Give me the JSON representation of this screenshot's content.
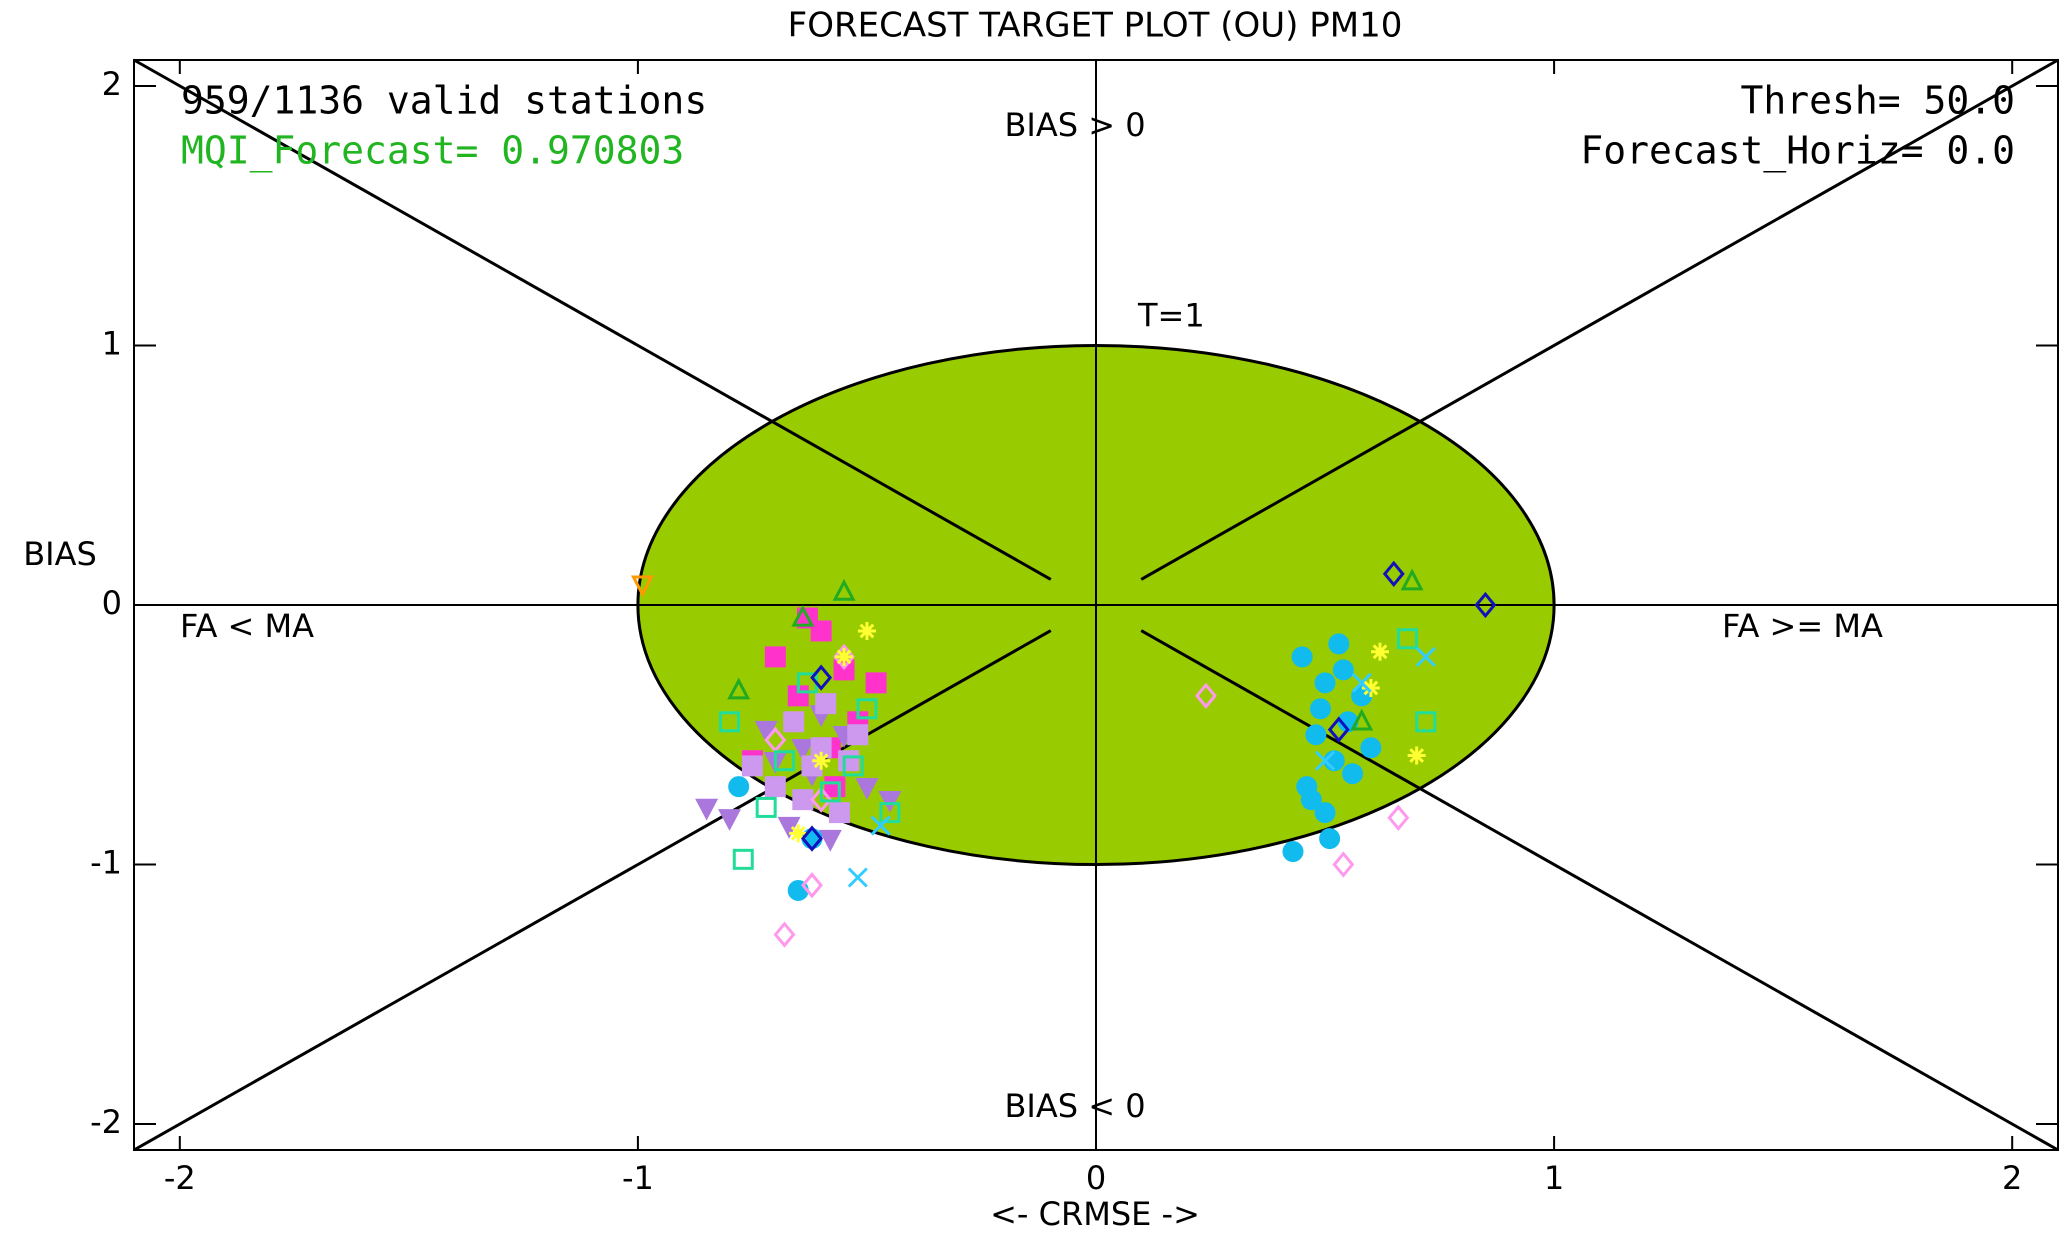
{
  "chart_data": {
    "type": "scatter",
    "title": "FORECAST TARGET PLOT (OU)    PM10",
    "x_label": "<- CRMSE ->",
    "y_label": "BIAS",
    "xlim": [
      -2.1,
      2.1
    ],
    "ylim": [
      -2.1,
      2.1
    ],
    "xticks": [
      -2,
      -1,
      0,
      1,
      2
    ],
    "yticks": [
      -2,
      -1,
      0,
      1,
      2
    ],
    "target": {
      "label": "T=1",
      "radius": 1,
      "color": "#99cc00"
    },
    "annotations": {
      "stations": {
        "text": "959/1136 valid stations",
        "color": "#000000"
      },
      "mqi": {
        "text": "MQI_Forecast= 0.970803",
        "color": "#22b522"
      },
      "thresh": {
        "text": "Thresh= 50.0",
        "color": "#000000"
      },
      "horizon": {
        "text": "Forecast_Horiz= 0.0",
        "color": "#000000"
      },
      "bias_pos": {
        "text": "BIAS > 0",
        "color": "#000000"
      },
      "bias_neg": {
        "text": "BIAS < 0",
        "color": "#000000"
      },
      "fa_lt": {
        "text": "FA < MA",
        "color": "#000000"
      },
      "fa_ge": {
        "text": "FA >= MA",
        "color": "#000000"
      }
    },
    "series": [
      {
        "color": "#ff33cc",
        "marker": "square",
        "filled": true,
        "x": [
          -0.6,
          -0.55,
          -0.65,
          -0.7,
          -0.52,
          -0.58,
          -0.63,
          -0.48,
          -0.75,
          -0.57
        ],
        "values": [
          -0.1,
          -0.25,
          -0.35,
          -0.2,
          -0.45,
          -0.55,
          -0.05,
          -0.3,
          -0.6,
          -0.7
        ]
      },
      {
        "color": "#aa77dd",
        "marker": "triangle-down",
        "filled": true,
        "x": [
          -0.85,
          -0.8,
          -0.7,
          -0.62,
          -0.55,
          -0.5,
          -0.67,
          -0.6,
          -0.72,
          -0.45,
          -0.58,
          -0.64
        ],
        "values": [
          -0.78,
          -0.82,
          -0.6,
          -0.65,
          -0.5,
          -0.7,
          -0.85,
          -0.42,
          -0.48,
          -0.75,
          -0.9,
          -0.55
        ]
      },
      {
        "color": "#cc99ee",
        "marker": "square",
        "filled": true,
        "x": [
          -0.6,
          -0.66,
          -0.54,
          -0.59,
          -0.7,
          -0.56,
          -0.62,
          -0.52,
          -0.75,
          -0.64
        ],
        "values": [
          -0.55,
          -0.45,
          -0.6,
          -0.38,
          -0.7,
          -0.8,
          -0.62,
          -0.5,
          -0.62,
          -0.75
        ]
      },
      {
        "color": "#11bbee",
        "marker": "circle",
        "filled": true,
        "x": [
          0.45,
          0.5,
          0.55,
          0.48,
          0.52,
          0.58,
          0.46,
          0.5,
          0.54,
          0.6,
          0.43,
          0.56,
          0.49,
          0.53,
          0.47,
          0.51,
          -0.65,
          -0.78,
          -0.62
        ],
        "values": [
          -0.2,
          -0.3,
          -0.45,
          -0.5,
          -0.6,
          -0.35,
          -0.7,
          -0.8,
          -0.25,
          -0.55,
          -0.95,
          -0.65,
          -0.4,
          -0.15,
          -0.75,
          -0.9,
          -1.1,
          -0.7,
          -0.9
        ]
      },
      {
        "color": "#ff99ee",
        "marker": "diamond",
        "filled": false,
        "x": [
          -0.68,
          -0.62,
          -0.7,
          0.54,
          0.24,
          0.66,
          -0.55,
          -0.6
        ],
        "values": [
          -1.27,
          -1.08,
          -0.52,
          -1.0,
          -0.35,
          -0.82,
          -0.2,
          -0.75
        ]
      },
      {
        "color": "#ffff33",
        "marker": "star",
        "filled": false,
        "x": [
          -0.55,
          -0.6,
          -0.5,
          0.7,
          0.6,
          -0.65,
          0.62
        ],
        "values": [
          -0.2,
          -0.6,
          -0.1,
          -0.58,
          -0.32,
          -0.88,
          -0.18
        ]
      },
      {
        "color": "#22dd99",
        "marker": "square",
        "filled": false,
        "x": [
          -0.8,
          -0.77,
          -0.72,
          -0.68,
          -0.5,
          -0.58,
          -0.63,
          0.68,
          0.72,
          -0.45,
          -0.53
        ],
        "values": [
          -0.45,
          -0.98,
          -0.78,
          -0.6,
          -0.4,
          -0.72,
          -0.3,
          -0.13,
          -0.45,
          -0.8,
          -0.62
        ]
      },
      {
        "color": "#1111bb",
        "marker": "diamond",
        "filled": false,
        "x": [
          0.85,
          0.53,
          -0.62,
          0.65,
          -0.6
        ],
        "values": [
          0,
          -0.48,
          -0.9,
          0.12,
          -0.28
        ]
      },
      {
        "color": "#22aa22",
        "marker": "triangle-up",
        "filled": false,
        "x": [
          -0.55,
          -0.64,
          0.69,
          -0.78,
          0.58
        ],
        "values": [
          0.05,
          -0.05,
          0.09,
          -0.33,
          -0.45
        ]
      },
      {
        "color": "#33ccff",
        "marker": "cross",
        "filled": false,
        "x": [
          0.72,
          0.5,
          0.58,
          -0.52,
          -0.47
        ],
        "values": [
          -0.2,
          -0.6,
          -0.3,
          -1.05,
          -0.85
        ]
      },
      {
        "color": "#ff9900",
        "marker": "triangle-down",
        "filled": false,
        "x": [
          -0.99
        ],
        "values": [
          0.08
        ]
      }
    ]
  }
}
